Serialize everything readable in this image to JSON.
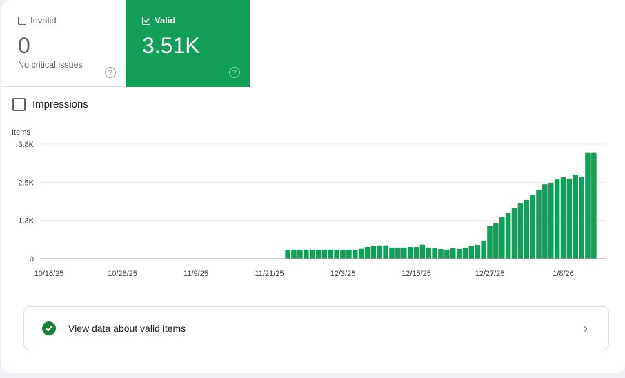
{
  "tiles": {
    "invalid": {
      "label": "Invalid",
      "value": "0",
      "subtitle": "No critical issues",
      "help": "?"
    },
    "valid": {
      "label": "Valid",
      "value": "3.51K",
      "help": "?"
    }
  },
  "impressions_label": "Impressions",
  "colors": {
    "accent": "#129f57",
    "bar": "#129f57"
  },
  "chart_data": {
    "type": "bar",
    "ylabel": "Items",
    "ylim": [
      0,
      3800
    ],
    "y_ticks": [
      "0",
      "1.3K",
      "2.5K",
      "3.8K"
    ],
    "x_ticks": [
      "10/16/25",
      "10/28/25",
      "11/9/25",
      "11/21/25",
      "12/3/25",
      "12/15/25",
      "12/27/25",
      "1/8/26"
    ],
    "x_tick_interval_days": 12,
    "first_bar_day_offset": 39,
    "values": [
      300,
      300,
      300,
      300,
      300,
      300,
      300,
      300,
      300,
      300,
      300,
      300,
      330,
      390,
      420,
      440,
      440,
      370,
      370,
      370,
      390,
      390,
      465,
      370,
      345,
      320,
      300,
      345,
      320,
      370,
      435,
      460,
      595,
      1100,
      1170,
      1375,
      1510,
      1670,
      1830,
      1950,
      2110,
      2290,
      2470,
      2500,
      2630,
      2700,
      2660,
      2790,
      2700,
      3510,
      3510
    ]
  },
  "view_link": {
    "label": "View data about valid items"
  }
}
